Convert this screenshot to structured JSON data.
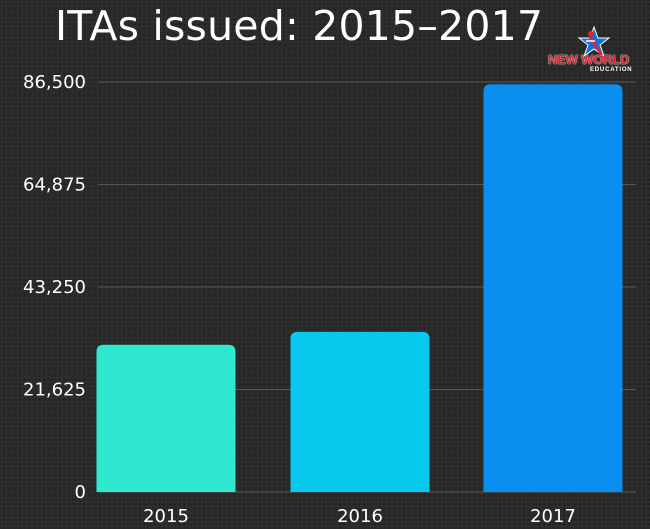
{
  "chart_data": {
    "type": "bar",
    "title": "ITAs issued: 2015–2017",
    "categories": [
      "2015",
      "2016",
      "2017"
    ],
    "values": [
      31063,
      33782,
      86022
    ],
    "colors": [
      "#2ee8d0",
      "#08c8ee",
      "#0a8ef0"
    ],
    "yticks": [
      0,
      21625,
      43250,
      64875,
      86500
    ],
    "ytick_labels": [
      "0",
      "21,625",
      "43,250",
      "64,875",
      "86,500"
    ],
    "ylim": [
      0,
      86500
    ],
    "grid": true,
    "xlabel": "",
    "ylabel": ""
  },
  "logo": {
    "brand_text": "NEW WORLD",
    "sub_text": "EDUCATION",
    "star_color": "#1d6fd8",
    "accent_color": "#e2232b"
  }
}
